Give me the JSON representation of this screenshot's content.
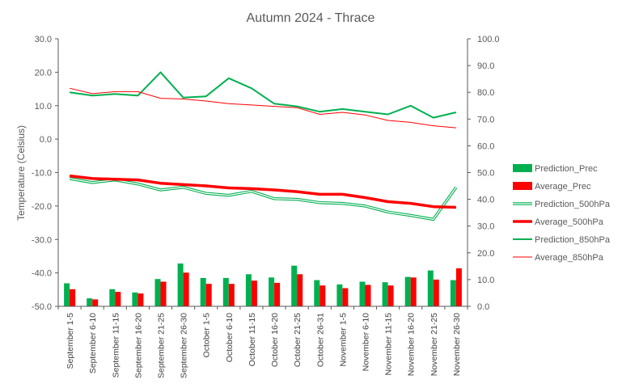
{
  "chart_data": {
    "type": "bar+line",
    "title": "Autumn 2024 - Thrace",
    "ylabel": "Temperature (Celsius)",
    "xlabel": "",
    "grid": false,
    "legend_position": "right",
    "categories": [
      "September 1-5",
      "September 6-10",
      "September 11-15",
      "September 16-20",
      "September 21-25",
      "September 26-30",
      "October 1-5",
      "October 6-10",
      "October 11-15",
      "October 16-20",
      "October 21-25",
      "October 26-31",
      "November 1-5",
      "November 6-10",
      "November 11-15",
      "November 16-20",
      "November 21-25",
      "November 26-30"
    ],
    "y_left": {
      "range": [
        -50,
        30
      ],
      "ticks": [
        "-50.0",
        "-40.0",
        "-30.0",
        "-20.0",
        "-10.0",
        "0.0",
        "10.0",
        "20.0",
        "30.0"
      ]
    },
    "y_right": {
      "range": [
        0,
        100
      ],
      "ticks": [
        "0.0",
        "10.0",
        "20.0",
        "30.0",
        "40.0",
        "50.0",
        "60.0",
        "70.0",
        "80.0",
        "90.0",
        "100.0"
      ]
    },
    "series": [
      {
        "name": "Prediction_Prec",
        "kind": "bar",
        "axis": "right",
        "color": "#00B050",
        "values": [
          8.6,
          3.0,
          6.4,
          5.2,
          10.2,
          16.0,
          10.6,
          10.6,
          12.0,
          10.8,
          15.2,
          9.8,
          8.2,
          9.2,
          9.0,
          11.0,
          13.4,
          9.8
        ]
      },
      {
        "name": "Average_Prec",
        "kind": "bar",
        "axis": "right",
        "color": "#FF0000",
        "values": [
          6.4,
          2.6,
          5.4,
          4.8,
          9.2,
          12.6,
          8.4,
          8.4,
          9.6,
          8.8,
          12.0,
          7.8,
          6.8,
          8.0,
          7.8,
          10.8,
          10.0,
          14.2
        ]
      },
      {
        "name": "Prediction_500hPa",
        "kind": "line-double",
        "axis": "left",
        "color": "#00B050",
        "values": [
          -11.8,
          -13.0,
          -12.2,
          -13.4,
          -15.2,
          -14.4,
          -16.2,
          -16.8,
          -15.6,
          -17.8,
          -18.0,
          -19.0,
          -19.2,
          -20.0,
          -21.8,
          -22.8,
          -24.0,
          -14.4
        ]
      },
      {
        "name": "Average_500hPa",
        "kind": "line",
        "axis": "left",
        "color": "#FF0000",
        "values": [
          -11.0,
          -11.8,
          -12.0,
          -12.2,
          -13.2,
          -13.6,
          -14.0,
          -14.6,
          -14.8,
          -15.2,
          -15.7,
          -16.5,
          -16.5,
          -17.5,
          -18.7,
          -19.2,
          -20.2,
          -20.4
        ]
      },
      {
        "name": "Prediction_850hPa",
        "kind": "line",
        "axis": "left",
        "color": "#00B050",
        "values": [
          14.0,
          13.0,
          13.5,
          13.0,
          20.0,
          12.4,
          12.8,
          18.2,
          15.2,
          10.6,
          9.8,
          8.2,
          9.0,
          8.2,
          7.4,
          10.0,
          6.4,
          8.0
        ]
      },
      {
        "name": "Average_850hPa",
        "kind": "line",
        "axis": "left",
        "color": "#FF0000",
        "values": [
          15.2,
          13.6,
          14.2,
          14.2,
          12.2,
          12.0,
          11.4,
          10.6,
          10.2,
          9.8,
          9.4,
          7.4,
          8.0,
          7.2,
          5.6,
          5.0,
          4.0,
          3.4
        ]
      }
    ]
  }
}
